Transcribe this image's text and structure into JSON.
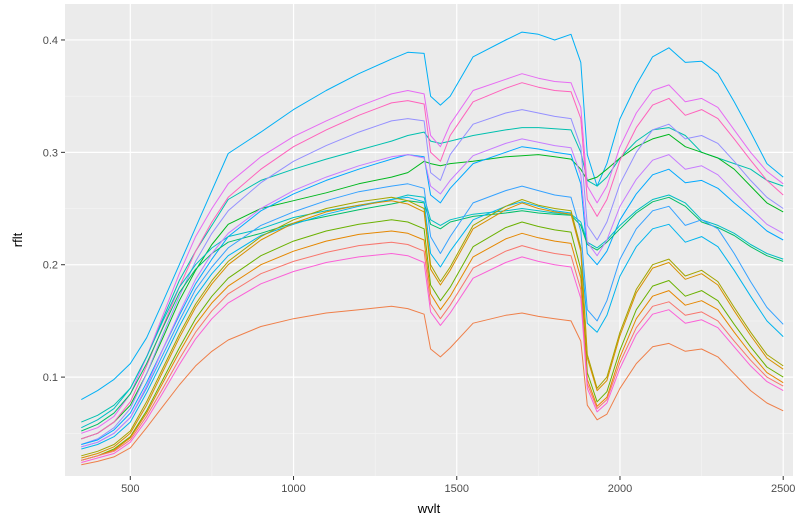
{
  "chart_data": {
    "type": "line",
    "title": "",
    "xlabel": "wvlt",
    "ylabel": "rflt",
    "xlim": [
      300,
      2530
    ],
    "ylim": [
      0.012,
      0.432
    ],
    "x_ticks": [
      500,
      1000,
      1500,
      2000,
      2500
    ],
    "x_tick_labels": [
      "500",
      "1000",
      "1500",
      "2000",
      "2500"
    ],
    "y_ticks": [
      0.1,
      0.2,
      0.3,
      0.4
    ],
    "y_tick_labels": [
      "0.1",
      "0.2",
      "0.3",
      "0.4"
    ],
    "grid": true,
    "legend": "none",
    "background": "#ebebeb",
    "x": [
      350,
      400,
      450,
      500,
      550,
      600,
      650,
      700,
      750,
      800,
      900,
      1000,
      1100,
      1200,
      1300,
      1350,
      1400,
      1420,
      1450,
      1480,
      1550,
      1650,
      1700,
      1750,
      1800,
      1850,
      1880,
      1900,
      1930,
      1960,
      2000,
      2050,
      2100,
      2150,
      2200,
      2250,
      2300,
      2350,
      2400,
      2450,
      2500
    ],
    "series": [
      {
        "color": "#00b0f6",
        "values": [
          0.08,
          0.088,
          0.098,
          0.112,
          0.135,
          0.167,
          0.2,
          0.233,
          0.266,
          0.299,
          0.318,
          0.338,
          0.355,
          0.37,
          0.383,
          0.389,
          0.388,
          0.35,
          0.342,
          0.35,
          0.385,
          0.4,
          0.407,
          0.405,
          0.4,
          0.405,
          0.38,
          0.298,
          0.27,
          0.29,
          0.33,
          0.36,
          0.385,
          0.393,
          0.38,
          0.381,
          0.37,
          0.345,
          0.318,
          0.29,
          0.278
        ]
      },
      {
        "color": "#00c0af",
        "values": [
          0.06,
          0.066,
          0.075,
          0.09,
          0.118,
          0.152,
          0.186,
          0.212,
          0.235,
          0.258,
          0.275,
          0.285,
          0.294,
          0.302,
          0.31,
          0.315,
          0.318,
          0.31,
          0.308,
          0.31,
          0.315,
          0.32,
          0.322,
          0.322,
          0.321,
          0.32,
          0.3,
          0.275,
          0.27,
          0.278,
          0.295,
          0.31,
          0.32,
          0.322,
          0.315,
          0.3,
          0.295,
          0.29,
          0.285,
          0.275,
          0.27
        ]
      },
      {
        "color": "#00b81f",
        "values": [
          0.045,
          0.05,
          0.06,
          0.075,
          0.103,
          0.135,
          0.168,
          0.195,
          0.218,
          0.236,
          0.25,
          0.257,
          0.264,
          0.272,
          0.278,
          0.282,
          0.292,
          0.29,
          0.288,
          0.29,
          0.292,
          0.296,
          0.297,
          0.298,
          0.296,
          0.294,
          0.285,
          0.275,
          0.278,
          0.285,
          0.295,
          0.305,
          0.312,
          0.316,
          0.305,
          0.3,
          0.295,
          0.285,
          0.27,
          0.255,
          0.247
        ]
      },
      {
        "color": "#e76bf3",
        "values": [
          0.05,
          0.055,
          0.065,
          0.085,
          0.118,
          0.155,
          0.192,
          0.225,
          0.25,
          0.272,
          0.296,
          0.314,
          0.328,
          0.341,
          0.352,
          0.355,
          0.352,
          0.315,
          0.305,
          0.325,
          0.355,
          0.365,
          0.37,
          0.366,
          0.363,
          0.362,
          0.34,
          0.27,
          0.255,
          0.27,
          0.305,
          0.335,
          0.355,
          0.36,
          0.345,
          0.348,
          0.34,
          0.32,
          0.3,
          0.283,
          0.272
        ]
      },
      {
        "color": "#ff62bc",
        "values": [
          0.045,
          0.05,
          0.06,
          0.078,
          0.11,
          0.145,
          0.18,
          0.212,
          0.238,
          0.26,
          0.285,
          0.305,
          0.32,
          0.333,
          0.344,
          0.346,
          0.343,
          0.3,
          0.292,
          0.315,
          0.345,
          0.357,
          0.362,
          0.358,
          0.355,
          0.354,
          0.33,
          0.258,
          0.243,
          0.258,
          0.293,
          0.322,
          0.342,
          0.348,
          0.333,
          0.338,
          0.33,
          0.312,
          0.293,
          0.275,
          0.262
        ]
      },
      {
        "color": "#9590ff",
        "values": [
          0.04,
          0.045,
          0.055,
          0.072,
          0.103,
          0.138,
          0.172,
          0.203,
          0.228,
          0.248,
          0.273,
          0.292,
          0.306,
          0.318,
          0.328,
          0.33,
          0.328,
          0.282,
          0.275,
          0.298,
          0.325,
          0.335,
          0.338,
          0.335,
          0.332,
          0.33,
          0.305,
          0.235,
          0.222,
          0.238,
          0.272,
          0.3,
          0.32,
          0.325,
          0.312,
          0.315,
          0.308,
          0.292,
          0.275,
          0.26,
          0.25
        ]
      },
      {
        "color": "#00a9ff",
        "values": [
          0.04,
          0.044,
          0.053,
          0.068,
          0.095,
          0.125,
          0.155,
          0.183,
          0.205,
          0.225,
          0.248,
          0.263,
          0.275,
          0.285,
          0.294,
          0.298,
          0.296,
          0.262,
          0.255,
          0.268,
          0.29,
          0.3,
          0.305,
          0.303,
          0.3,
          0.298,
          0.272,
          0.21,
          0.2,
          0.212,
          0.24,
          0.263,
          0.28,
          0.285,
          0.273,
          0.275,
          0.268,
          0.255,
          0.243,
          0.23,
          0.222
        ]
      },
      {
        "color": "#00bfc4",
        "values": [
          0.055,
          0.062,
          0.072,
          0.09,
          0.118,
          0.15,
          0.18,
          0.2,
          0.215,
          0.225,
          0.232,
          0.242,
          0.248,
          0.253,
          0.258,
          0.262,
          0.26,
          0.24,
          0.235,
          0.24,
          0.245,
          0.248,
          0.25,
          0.248,
          0.246,
          0.245,
          0.238,
          0.22,
          0.215,
          0.222,
          0.235,
          0.248,
          0.258,
          0.262,
          0.255,
          0.24,
          0.235,
          0.228,
          0.218,
          0.21,
          0.205
        ]
      },
      {
        "color": "#00be67",
        "values": [
          0.052,
          0.058,
          0.068,
          0.085,
          0.112,
          0.144,
          0.175,
          0.196,
          0.21,
          0.22,
          0.228,
          0.237,
          0.243,
          0.249,
          0.254,
          0.257,
          0.255,
          0.236,
          0.232,
          0.238,
          0.243,
          0.246,
          0.248,
          0.246,
          0.245,
          0.244,
          0.235,
          0.218,
          0.213,
          0.22,
          0.232,
          0.246,
          0.256,
          0.26,
          0.252,
          0.238,
          0.233,
          0.226,
          0.216,
          0.208,
          0.203
        ]
      },
      {
        "color": "#35a2ff",
        "values": [
          0.038,
          0.042,
          0.05,
          0.064,
          0.09,
          0.12,
          0.15,
          0.178,
          0.198,
          0.215,
          0.235,
          0.247,
          0.257,
          0.265,
          0.27,
          0.272,
          0.268,
          0.225,
          0.21,
          0.225,
          0.255,
          0.266,
          0.27,
          0.266,
          0.262,
          0.26,
          0.23,
          0.16,
          0.15,
          0.168,
          0.205,
          0.232,
          0.248,
          0.252,
          0.235,
          0.24,
          0.232,
          0.21,
          0.185,
          0.162,
          0.147
        ]
      },
      {
        "color": "#c77cff",
        "values": [
          0.038,
          0.042,
          0.05,
          0.064,
          0.092,
          0.125,
          0.157,
          0.187,
          0.21,
          0.228,
          0.25,
          0.266,
          0.278,
          0.288,
          0.296,
          0.298,
          0.295,
          0.27,
          0.263,
          0.275,
          0.297,
          0.308,
          0.312,
          0.309,
          0.306,
          0.304,
          0.28,
          0.22,
          0.208,
          0.222,
          0.252,
          0.276,
          0.293,
          0.298,
          0.285,
          0.288,
          0.28,
          0.265,
          0.25,
          0.236,
          0.228
        ]
      },
      {
        "color": "#00b5ee",
        "values": [
          0.036,
          0.04,
          0.047,
          0.06,
          0.086,
          0.115,
          0.145,
          0.172,
          0.192,
          0.208,
          0.226,
          0.236,
          0.245,
          0.252,
          0.258,
          0.26,
          0.256,
          0.21,
          0.198,
          0.212,
          0.24,
          0.252,
          0.256,
          0.252,
          0.248,
          0.246,
          0.215,
          0.148,
          0.14,
          0.155,
          0.19,
          0.216,
          0.232,
          0.236,
          0.22,
          0.225,
          0.216,
          0.195,
          0.172,
          0.15,
          0.136
        ]
      },
      {
        "color": "#a3a500",
        "values": [
          0.03,
          0.034,
          0.04,
          0.052,
          0.078,
          0.108,
          0.138,
          0.165,
          0.186,
          0.203,
          0.225,
          0.24,
          0.25,
          0.256,
          0.26,
          0.257,
          0.25,
          0.2,
          0.185,
          0.198,
          0.235,
          0.252,
          0.258,
          0.253,
          0.25,
          0.248,
          0.215,
          0.12,
          0.09,
          0.1,
          0.14,
          0.178,
          0.2,
          0.205,
          0.19,
          0.195,
          0.185,
          0.162,
          0.14,
          0.12,
          0.11
        ]
      },
      {
        "color": "#d89000",
        "values": [
          0.028,
          0.032,
          0.038,
          0.05,
          0.075,
          0.105,
          0.135,
          0.162,
          0.183,
          0.2,
          0.222,
          0.237,
          0.247,
          0.253,
          0.257,
          0.254,
          0.247,
          0.196,
          0.182,
          0.195,
          0.232,
          0.249,
          0.255,
          0.25,
          0.247,
          0.245,
          0.212,
          0.117,
          0.088,
          0.097,
          0.137,
          0.175,
          0.197,
          0.202,
          0.187,
          0.192,
          0.182,
          0.159,
          0.137,
          0.117,
          0.107
        ]
      },
      {
        "color": "#6bb100",
        "values": [
          0.026,
          0.03,
          0.036,
          0.047,
          0.07,
          0.098,
          0.126,
          0.152,
          0.172,
          0.188,
          0.208,
          0.221,
          0.23,
          0.236,
          0.24,
          0.238,
          0.232,
          0.182,
          0.168,
          0.18,
          0.216,
          0.233,
          0.238,
          0.234,
          0.231,
          0.229,
          0.196,
          0.104,
          0.078,
          0.087,
          0.124,
          0.16,
          0.181,
          0.186,
          0.172,
          0.177,
          0.168,
          0.147,
          0.127,
          0.109,
          0.1
        ]
      },
      {
        "color": "#e58700",
        "values": [
          0.026,
          0.03,
          0.035,
          0.046,
          0.068,
          0.095,
          0.122,
          0.147,
          0.166,
          0.181,
          0.2,
          0.212,
          0.221,
          0.227,
          0.23,
          0.228,
          0.222,
          0.174,
          0.16,
          0.172,
          0.207,
          0.223,
          0.228,
          0.224,
          0.221,
          0.219,
          0.188,
          0.098,
          0.074,
          0.082,
          0.118,
          0.152,
          0.172,
          0.177,
          0.164,
          0.168,
          0.16,
          0.14,
          0.121,
          0.104,
          0.095
        ]
      },
      {
        "color": "#f8766d",
        "values": [
          0.026,
          0.03,
          0.034,
          0.044,
          0.065,
          0.09,
          0.116,
          0.14,
          0.159,
          0.174,
          0.192,
          0.203,
          0.211,
          0.217,
          0.22,
          0.218,
          0.212,
          0.165,
          0.152,
          0.164,
          0.197,
          0.212,
          0.217,
          0.213,
          0.21,
          0.208,
          0.178,
          0.094,
          0.072,
          0.08,
          0.113,
          0.144,
          0.163,
          0.167,
          0.155,
          0.158,
          0.15,
          0.132,
          0.115,
          0.1,
          0.092
        ]
      },
      {
        "color": "#fb61d7",
        "values": [
          0.024,
          0.028,
          0.032,
          0.042,
          0.062,
          0.086,
          0.111,
          0.134,
          0.152,
          0.166,
          0.183,
          0.194,
          0.202,
          0.207,
          0.21,
          0.208,
          0.202,
          0.158,
          0.146,
          0.157,
          0.188,
          0.202,
          0.207,
          0.203,
          0.2,
          0.198,
          0.17,
          0.09,
          0.069,
          0.077,
          0.108,
          0.138,
          0.156,
          0.16,
          0.148,
          0.151,
          0.144,
          0.127,
          0.11,
          0.096,
          0.088
        ]
      },
      {
        "color": "#ef7f49",
        "values": [
          0.022,
          0.025,
          0.029,
          0.037,
          0.055,
          0.074,
          0.093,
          0.11,
          0.123,
          0.133,
          0.145,
          0.152,
          0.157,
          0.16,
          0.163,
          0.161,
          0.156,
          0.125,
          0.118,
          0.126,
          0.148,
          0.155,
          0.157,
          0.154,
          0.152,
          0.15,
          0.132,
          0.075,
          0.062,
          0.067,
          0.09,
          0.112,
          0.127,
          0.13,
          0.123,
          0.125,
          0.118,
          0.103,
          0.088,
          0.077,
          0.07
        ]
      }
    ]
  }
}
